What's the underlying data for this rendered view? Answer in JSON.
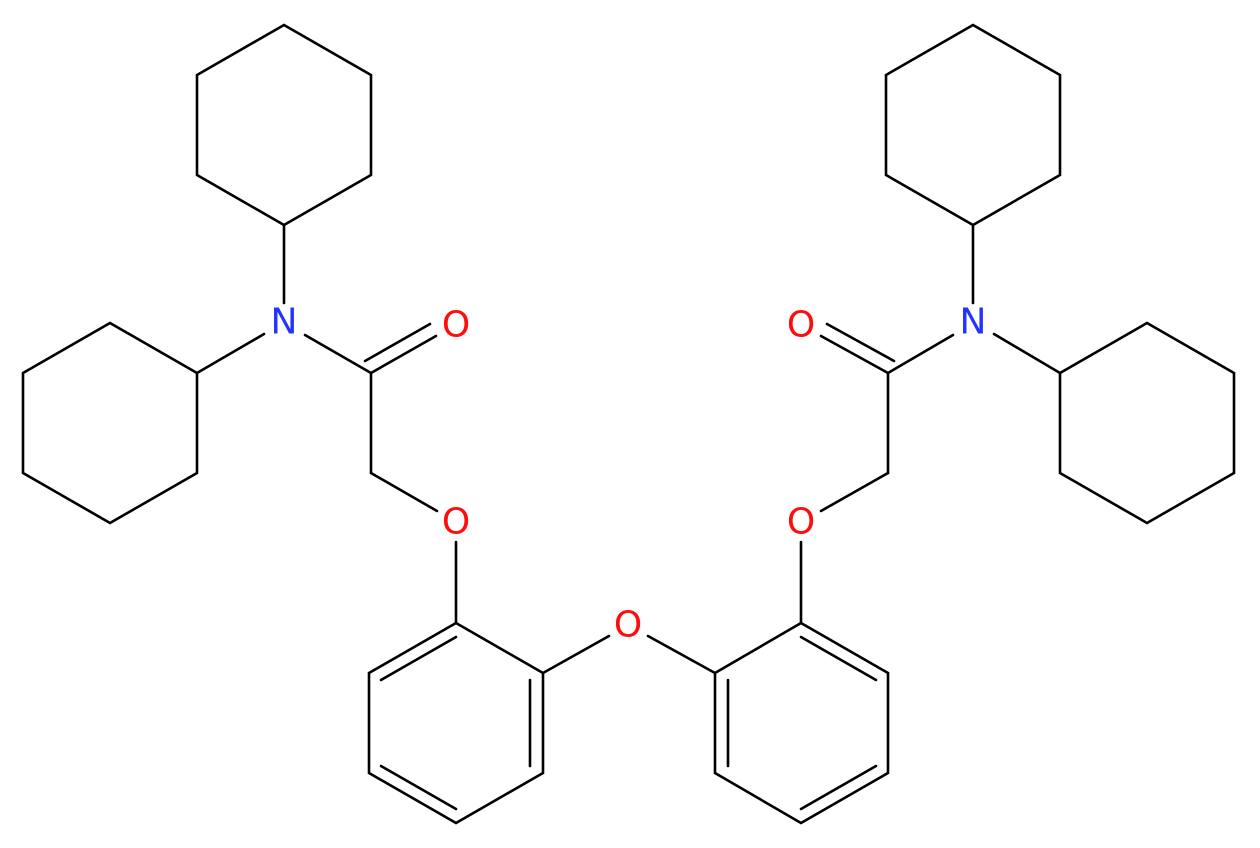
{
  "atoms": [
    {
      "label": "N"
    },
    {
      "label": "O"
    },
    {
      "label": "O"
    },
    {
      "label": "O"
    },
    {
      "label": "O"
    },
    {
      "label": "O"
    },
    {
      "label": "N"
    }
  ]
}
